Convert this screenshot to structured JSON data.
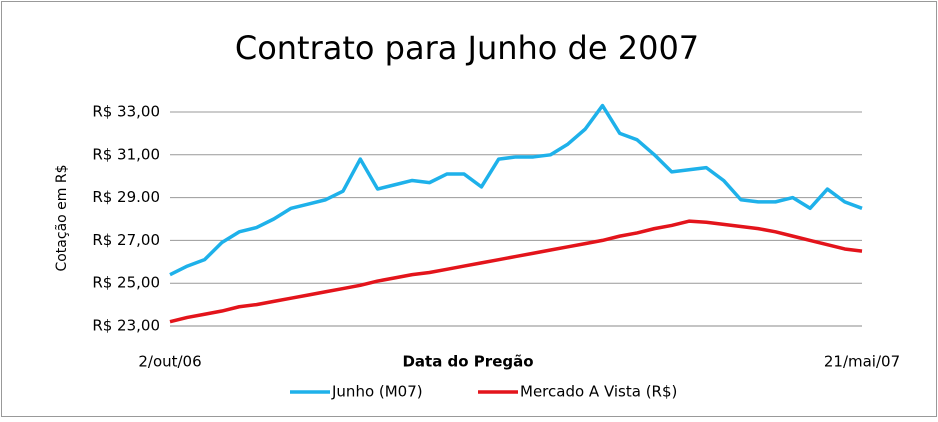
{
  "chart_data": {
    "type": "line",
    "title": "Contrato para Junho de 2007",
    "x_label": "Data do Pregão",
    "y_label": "Cotação em R$",
    "categories": [
      "2/out/06",
      null,
      null,
      null,
      null,
      null,
      null,
      null,
      null,
      null,
      null,
      null,
      null,
      null,
      null,
      null,
      null,
      null,
      null,
      null,
      null,
      null,
      null,
      null,
      null,
      null,
      null,
      null,
      null,
      null,
      null,
      null,
      null,
      null,
      null,
      null,
      null,
      null,
      null,
      null,
      "21/mai/07"
    ],
    "series": [
      {
        "name": "Junho (M07)",
        "color": "#1eb1ea",
        "values": [
          25.4,
          25.8,
          26.1,
          26.9,
          27.4,
          27.6,
          28.0,
          28.5,
          28.7,
          28.9,
          29.3,
          30.8,
          29.4,
          29.6,
          29.8,
          29.7,
          30.1,
          30.1,
          29.5,
          30.8,
          30.9,
          30.9,
          31.0,
          31.5,
          32.2,
          33.3,
          32.0,
          31.7,
          31.0,
          30.2,
          30.3,
          30.4,
          29.8,
          28.9,
          28.8,
          28.8,
          29.0,
          28.5,
          29.4,
          28.8,
          28.5
        ]
      },
      {
        "name": "Mercado A Vista (R$)",
        "color": "#e3141b",
        "values": [
          23.2,
          23.4,
          23.55,
          23.7,
          23.9,
          24.0,
          24.15,
          24.3,
          24.45,
          24.6,
          24.75,
          24.9,
          25.1,
          25.25,
          25.4,
          25.5,
          25.65,
          25.8,
          25.95,
          26.1,
          26.25,
          26.4,
          26.55,
          26.7,
          26.85,
          27.0,
          27.2,
          27.35,
          27.55,
          27.7,
          27.9,
          27.85,
          27.75,
          27.65,
          27.55,
          27.4,
          27.2,
          27.0,
          26.8,
          26.6,
          26.5
        ]
      }
    ],
    "ylim": [
      23,
      33
    ],
    "yticks": [
      {
        "value": 23,
        "label": "R$ 23,00"
      },
      {
        "value": 25,
        "label": "R$ 25,00"
      },
      {
        "value": 27,
        "label": "R$ 27,00"
      },
      {
        "value": 29,
        "label": "R$ 29.00"
      },
      {
        "value": 31,
        "label": "R$ 31,00"
      },
      {
        "value": 33,
        "label": "R$ 33,00"
      }
    ],
    "grid": true,
    "legend": "bottom"
  }
}
